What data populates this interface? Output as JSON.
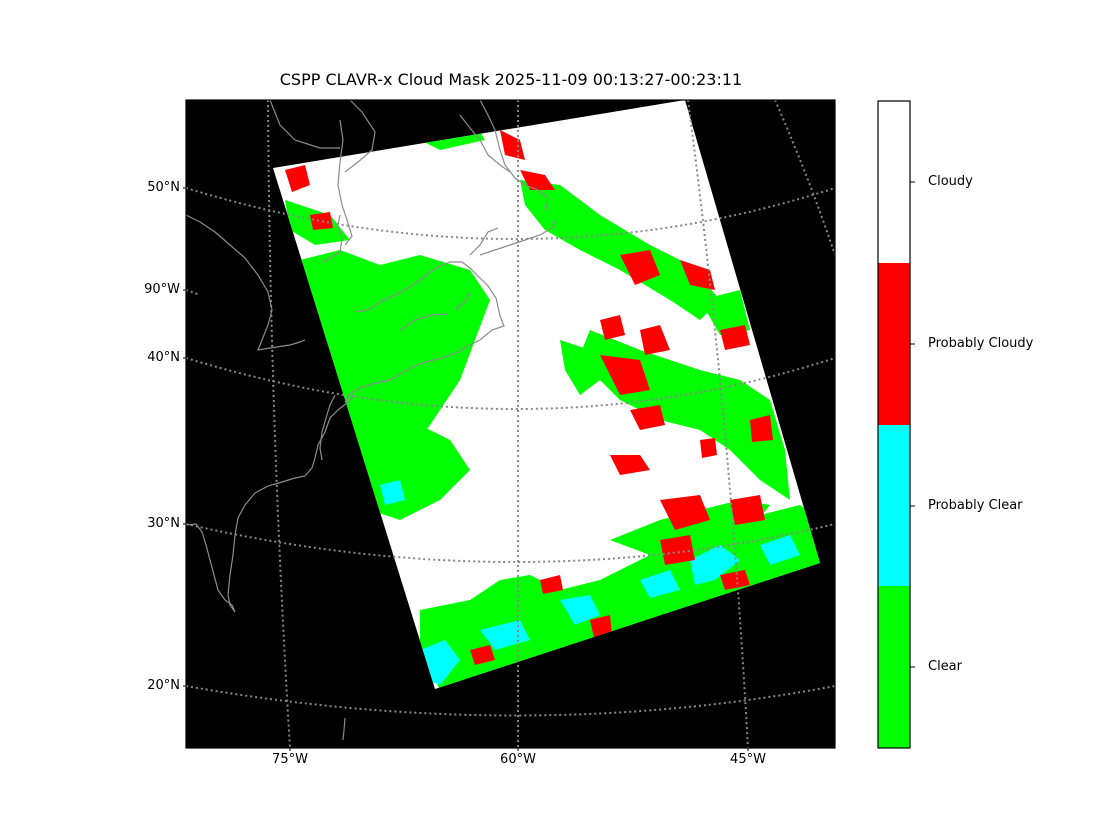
{
  "title": "CSPP CLAVR-x Cloud Mask 2025-11-09 00:13:27-00:23:11",
  "axes": {
    "lat_labels": [
      "50°N",
      "90°W",
      "40°N",
      "30°N",
      "20°N"
    ],
    "lon_labels": [
      "75°W",
      "60°W",
      "45°W"
    ]
  },
  "colorbar": {
    "classes": [
      {
        "label": "Cloudy",
        "color": "#ffffff"
      },
      {
        "label": "Probably Cloudy",
        "color": "#ff0000"
      },
      {
        "label": "Probably Clear",
        "color": "#00ffff"
      },
      {
        "label": "Clear",
        "color": "#00ff00"
      }
    ]
  },
  "colors": {
    "background": "#000000",
    "graticule": "#888888",
    "coastline": "#8c8c8c"
  }
}
